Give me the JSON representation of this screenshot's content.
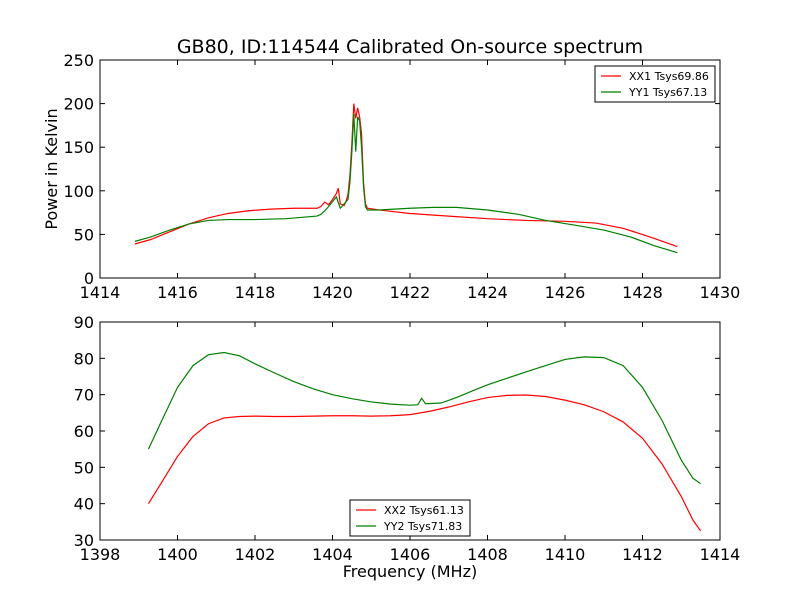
{
  "title": "GB80, ID:114544 Calibrated On-source spectrum",
  "chart_data": [
    {
      "type": "line",
      "ylabel": "Power in Kelvin",
      "xlabel": "",
      "xlim": [
        1414,
        1430
      ],
      "ylim": [
        0,
        250
      ],
      "xticks": [
        1414,
        1416,
        1418,
        1420,
        1422,
        1424,
        1426,
        1428,
        1430
      ],
      "yticks": [
        0,
        50,
        100,
        150,
        200,
        250
      ],
      "legend": "top-right",
      "series": [
        {
          "name": "XX1 Tsys69.86",
          "color": "#ff0000",
          "points": [
            [
              1414.9,
              39
            ],
            [
              1415.3,
              44
            ],
            [
              1415.8,
              53
            ],
            [
              1416.3,
              62
            ],
            [
              1416.8,
              69
            ],
            [
              1417.3,
              74
            ],
            [
              1417.8,
              77
            ],
            [
              1418.4,
              79
            ],
            [
              1419.0,
              80
            ],
            [
              1419.6,
              80
            ],
            [
              1419.7,
              82
            ],
            [
              1419.8,
              87
            ],
            [
              1419.9,
              84
            ],
            [
              1420.0,
              90
            ],
            [
              1420.1,
              97
            ],
            [
              1420.15,
              103
            ],
            [
              1420.2,
              85
            ],
            [
              1420.3,
              83
            ],
            [
              1420.35,
              88
            ],
            [
              1420.4,
              96
            ],
            [
              1420.45,
              118
            ],
            [
              1420.5,
              155
            ],
            [
              1420.55,
              200
            ],
            [
              1420.6,
              183
            ],
            [
              1420.65,
              195
            ],
            [
              1420.7,
              185
            ],
            [
              1420.75,
              165
            ],
            [
              1420.8,
              110
            ],
            [
              1420.85,
              85
            ],
            [
              1420.9,
              80
            ],
            [
              1421.2,
              78
            ],
            [
              1422.0,
              74
            ],
            [
              1423.0,
              71
            ],
            [
              1424.0,
              68
            ],
            [
              1425.0,
              66
            ],
            [
              1426.0,
              65
            ],
            [
              1426.8,
              63
            ],
            [
              1427.5,
              57
            ],
            [
              1428.2,
              47
            ],
            [
              1428.9,
              36
            ]
          ]
        },
        {
          "name": "YY1 Tsys67.13",
          "color": "#008000",
          "points": [
            [
              1414.9,
              42
            ],
            [
              1415.3,
              47
            ],
            [
              1415.8,
              55
            ],
            [
              1416.3,
              62
            ],
            [
              1416.8,
              66
            ],
            [
              1417.3,
              67
            ],
            [
              1418.0,
              67
            ],
            [
              1418.8,
              68
            ],
            [
              1419.6,
              71
            ],
            [
              1419.7,
              73
            ],
            [
              1419.8,
              77
            ],
            [
              1419.9,
              82
            ],
            [
              1420.1,
              93
            ],
            [
              1420.2,
              80
            ],
            [
              1420.3,
              85
            ],
            [
              1420.4,
              90
            ],
            [
              1420.45,
              110
            ],
            [
              1420.5,
              145
            ],
            [
              1420.55,
              188
            ],
            [
              1420.6,
              145
            ],
            [
              1420.65,
              185
            ],
            [
              1420.7,
              180
            ],
            [
              1420.75,
              150
            ],
            [
              1420.8,
              105
            ],
            [
              1420.85,
              82
            ],
            [
              1420.9,
              78
            ],
            [
              1421.2,
              78
            ],
            [
              1421.6,
              79
            ],
            [
              1422.0,
              80
            ],
            [
              1422.6,
              81
            ],
            [
              1423.2,
              81
            ],
            [
              1424.0,
              78
            ],
            [
              1424.8,
              73
            ],
            [
              1425.5,
              66
            ],
            [
              1426.2,
              61
            ],
            [
              1427.0,
              55
            ],
            [
              1427.7,
              47
            ],
            [
              1428.3,
              37
            ],
            [
              1428.9,
              29
            ]
          ]
        }
      ]
    },
    {
      "type": "line",
      "ylabel": "",
      "xlabel": "Frequency (MHz)",
      "xlim": [
        1398,
        1414
      ],
      "ylim": [
        30,
        90
      ],
      "xticks": [
        1398,
        1400,
        1402,
        1404,
        1406,
        1408,
        1410,
        1412,
        1414
      ],
      "yticks": [
        30,
        40,
        50,
        60,
        70,
        80,
        90
      ],
      "legend": "bottom-center",
      "series": [
        {
          "name": "XX2 Tsys61.13",
          "color": "#ff0000",
          "points": [
            [
              1399.25,
              40
            ],
            [
              1399.6,
              46
            ],
            [
              1400.0,
              53
            ],
            [
              1400.4,
              58.5
            ],
            [
              1400.8,
              62
            ],
            [
              1401.2,
              63.6
            ],
            [
              1401.6,
              64
            ],
            [
              1402.0,
              64.1
            ],
            [
              1402.5,
              64
            ],
            [
              1403.0,
              64
            ],
            [
              1403.5,
              64.1
            ],
            [
              1404.0,
              64.2
            ],
            [
              1404.5,
              64.2
            ],
            [
              1405.0,
              64.1
            ],
            [
              1405.5,
              64.2
            ],
            [
              1406.0,
              64.5
            ],
            [
              1406.5,
              65.4
            ],
            [
              1407.0,
              66.6
            ],
            [
              1407.5,
              68
            ],
            [
              1408.0,
              69.2
            ],
            [
              1408.5,
              69.8
            ],
            [
              1409.0,
              69.9
            ],
            [
              1409.5,
              69.5
            ],
            [
              1410.0,
              68.5
            ],
            [
              1410.5,
              67.2
            ],
            [
              1411.0,
              65.3
            ],
            [
              1411.5,
              62.5
            ],
            [
              1412.0,
              58
            ],
            [
              1412.5,
              51
            ],
            [
              1413.0,
              42
            ],
            [
              1413.3,
              35.5
            ],
            [
              1413.5,
              32.5
            ]
          ]
        },
        {
          "name": "YY2 Tsys71.83",
          "color": "#008000",
          "points": [
            [
              1399.25,
              55
            ],
            [
              1399.6,
              63
            ],
            [
              1400.0,
              72
            ],
            [
              1400.4,
              78
            ],
            [
              1400.8,
              81
            ],
            [
              1401.2,
              81.6
            ],
            [
              1401.6,
              80.7
            ],
            [
              1402.0,
              78.5
            ],
            [
              1402.5,
              76
            ],
            [
              1403.0,
              73.6
            ],
            [
              1403.5,
              71.6
            ],
            [
              1404.0,
              70
            ],
            [
              1404.5,
              68.9
            ],
            [
              1405.0,
              68
            ],
            [
              1405.5,
              67.4
            ],
            [
              1406.0,
              67.1
            ],
            [
              1406.2,
              67.2
            ],
            [
              1406.3,
              69
            ],
            [
              1406.4,
              67.5
            ],
            [
              1406.8,
              67.7
            ],
            [
              1407.2,
              69.2
            ],
            [
              1407.6,
              71
            ],
            [
              1408.0,
              72.7
            ],
            [
              1408.5,
              74.5
            ],
            [
              1409.0,
              76.3
            ],
            [
              1409.5,
              78
            ],
            [
              1410.0,
              79.7
            ],
            [
              1410.5,
              80.4
            ],
            [
              1411.0,
              80.2
            ],
            [
              1411.5,
              78
            ],
            [
              1412.0,
              72
            ],
            [
              1412.5,
              63
            ],
            [
              1413.0,
              52
            ],
            [
              1413.3,
              47
            ],
            [
              1413.5,
              45.5
            ]
          ]
        }
      ]
    }
  ]
}
